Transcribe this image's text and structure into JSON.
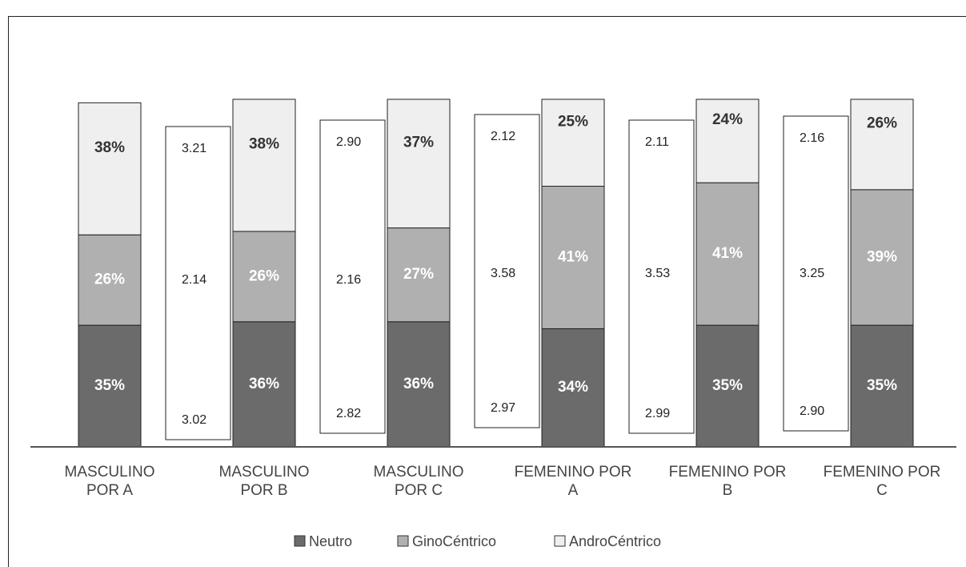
{
  "chart_data": {
    "type": "stacked_bar",
    "categories": [
      "MASCULINO POR A",
      "MASCULINO POR B",
      "MASCULINO POR C",
      "FEMENINO POR A",
      "FEMENINO POR B",
      "FEMENINO POR C"
    ],
    "series": [
      {
        "name": "Neutro",
        "color": "#6b6b6b",
        "values": [
          35,
          36,
          36,
          34,
          35,
          35
        ],
        "value_labels": [
          "35%",
          "36%",
          "36%",
          "34%",
          "35%",
          "35%"
        ]
      },
      {
        "name": "GinoCéntrico",
        "color": "#b0b0b0",
        "values": [
          26,
          26,
          27,
          41,
          41,
          39
        ],
        "value_labels": [
          "26%",
          "26%",
          "27%",
          "41%",
          "41%",
          "39%"
        ]
      },
      {
        "name": "AndroCéntrico",
        "color": "#efefef",
        "values": [
          38,
          38,
          37,
          25,
          24,
          26
        ],
        "value_labels": [
          "38%",
          "38%",
          "37%",
          "25%",
          "24%",
          "26%"
        ]
      }
    ],
    "side_boxes": [
      null,
      [
        "3.21",
        "2.14",
        "3.02"
      ],
      [
        "2.90",
        "2.16",
        "2.82"
      ],
      [
        "2.12",
        "3.58",
        "2.97"
      ],
      [
        "2.11",
        "3.53",
        "2.99"
      ],
      [
        "2.16",
        "3.25",
        "2.90"
      ]
    ],
    "ylim": [
      0,
      100
    ]
  }
}
